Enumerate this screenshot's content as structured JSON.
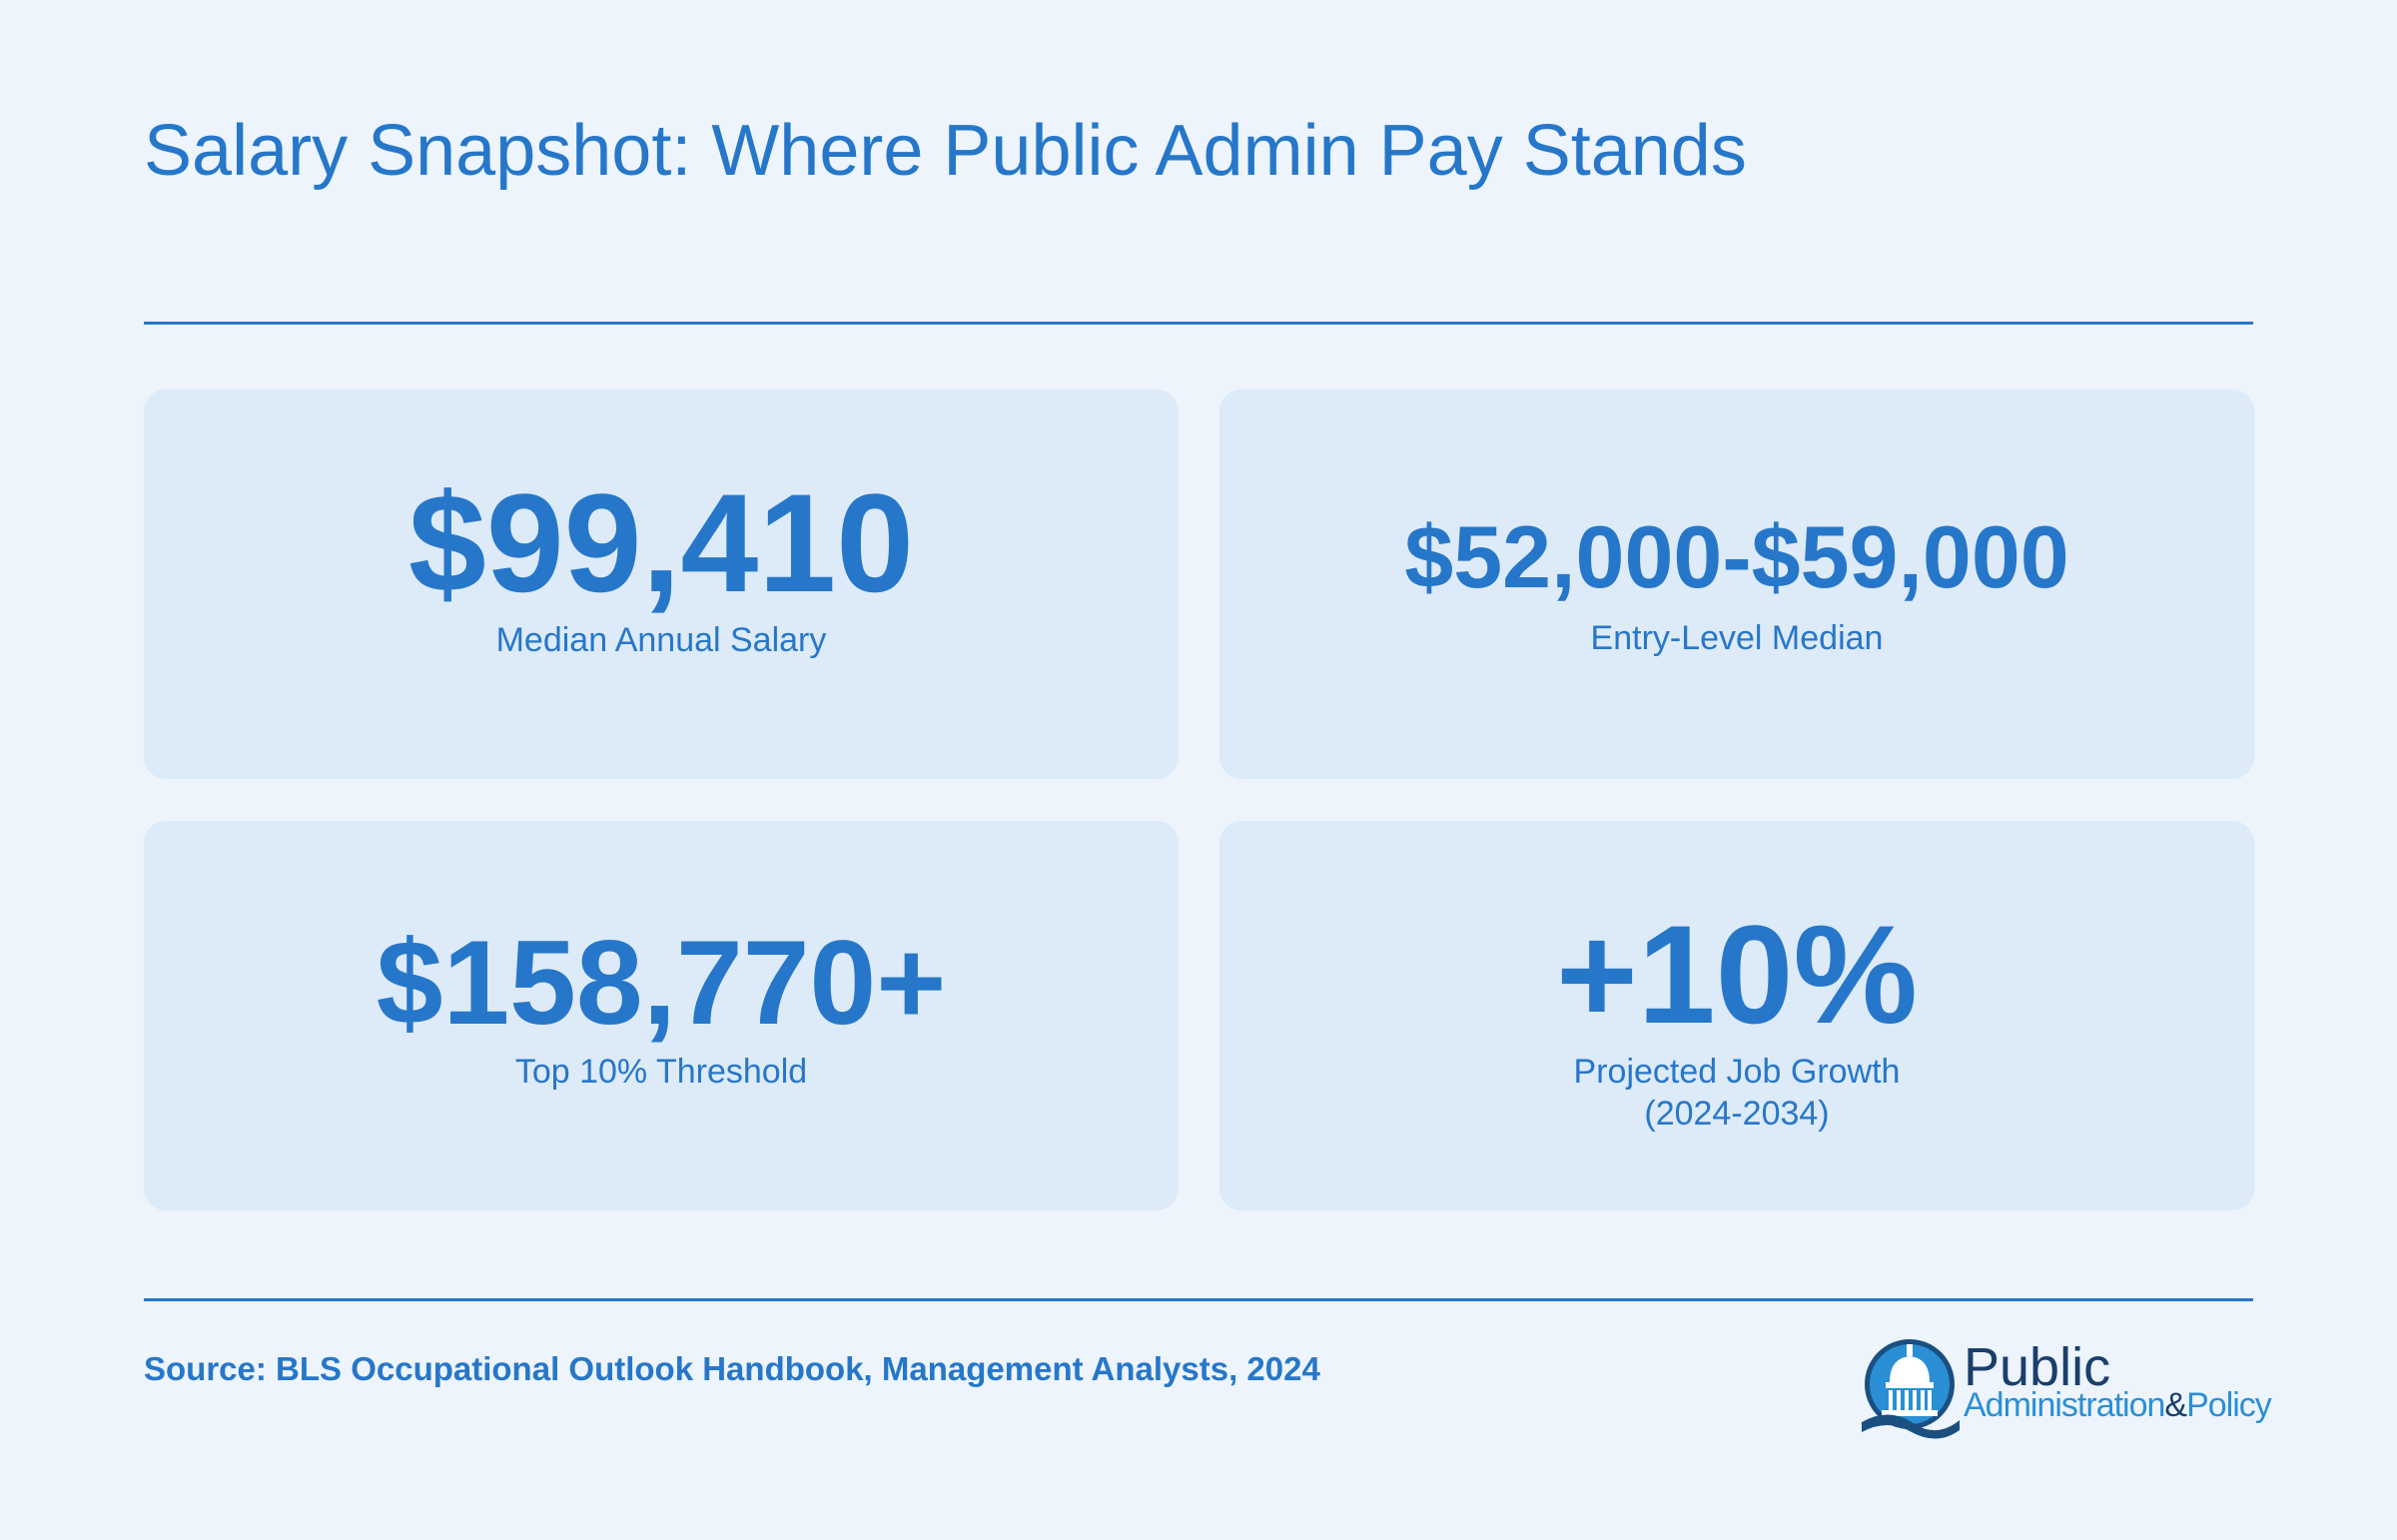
{
  "title": "Salary Snapshot: Where Public Admin Pay Stands",
  "cards": [
    {
      "value": "$99,410",
      "label": "Median Annual Salary"
    },
    {
      "value": "$52,000-$59,000",
      "label": "Entry-Level Median"
    },
    {
      "value": "$158,770+",
      "label": "Top 10% Threshold"
    },
    {
      "value": "+10%",
      "label_line1": "Projected Job Growth",
      "label_line2": "(2024-2034)"
    }
  ],
  "source": "Source: BLS Occupational Outlook Handbook, Management Analysts, 2024",
  "logo": {
    "line1": "Public",
    "line2a": "Administration",
    "line2b": "&",
    "line2c": "Policy",
    "icon": "capitol-dome-icon"
  },
  "colors": {
    "accent": "#2677c9",
    "background": "#edf4fc",
    "card": "#ddeaf7",
    "logo_dark": "#1a3f6b",
    "logo_light": "#2a8fd4"
  }
}
